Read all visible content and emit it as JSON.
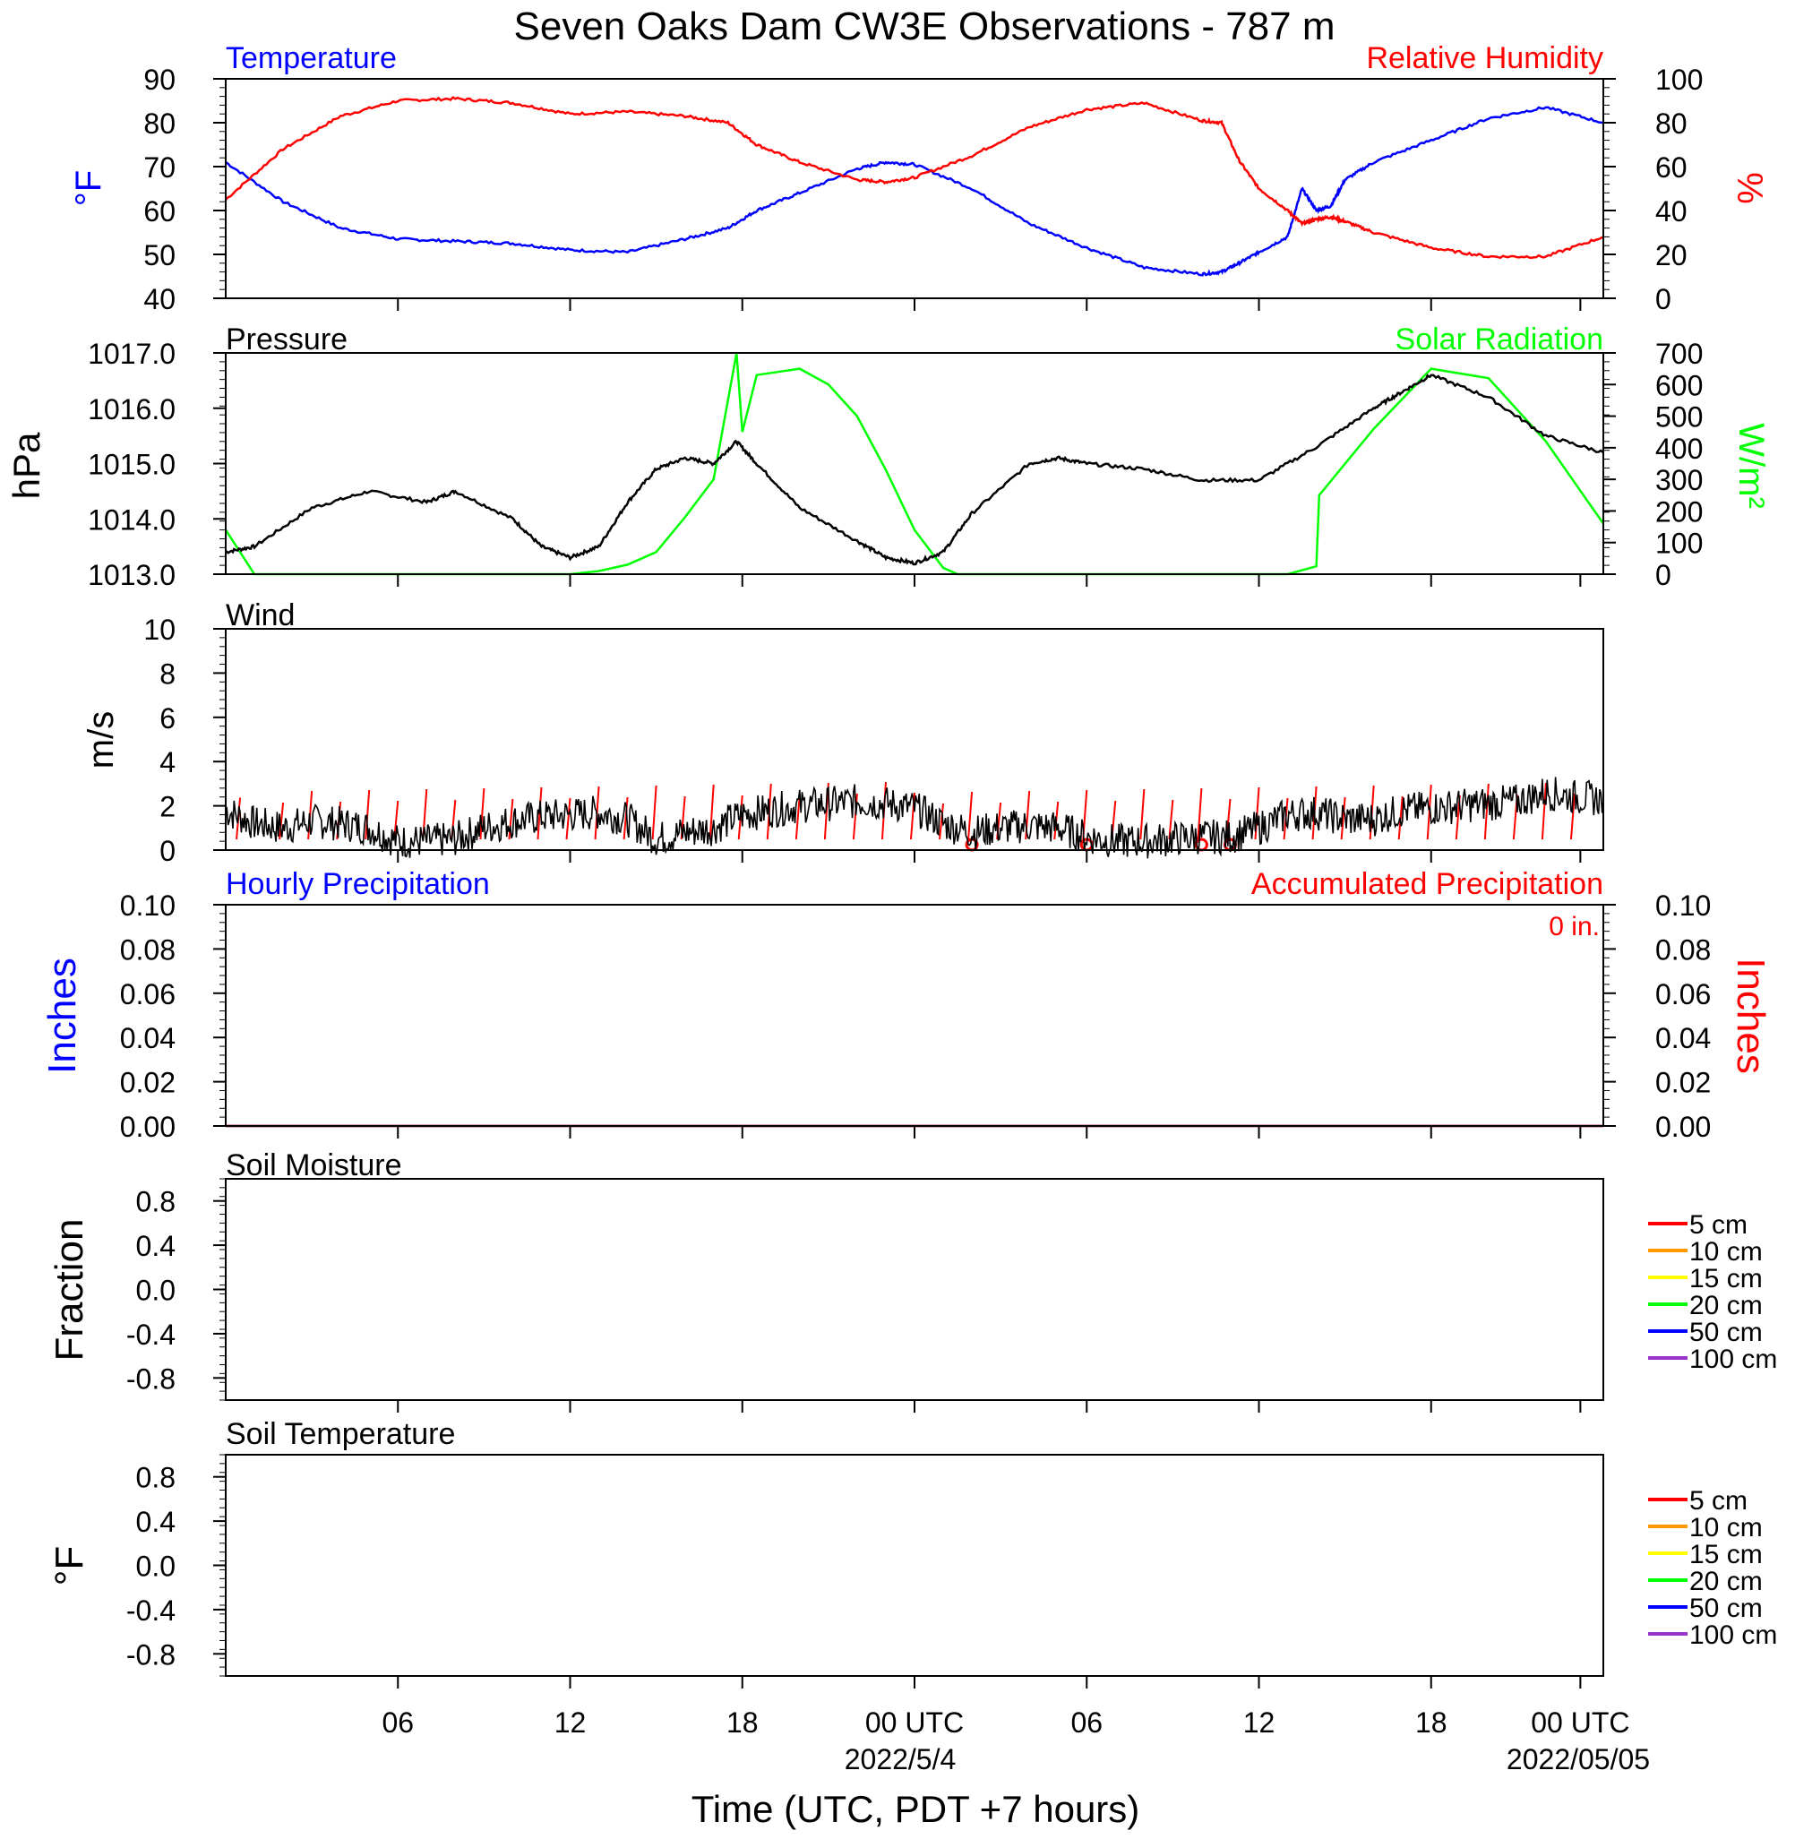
{
  "title": "Seven Oaks Dam CW3E Observations - 787 m",
  "xlabel": "Time (UTC, PDT +7 hours)",
  "x_ticks": [
    "06",
    "12",
    "18",
    "00 UTC",
    "06",
    "12",
    "18",
    "00 UTC"
  ],
  "x_dates": [
    "2022/5/4",
    "2022/05/05"
  ],
  "colors": {
    "blue": "#0000ff",
    "red": "#ff0000",
    "green": "#00ff00",
    "black": "#000000",
    "orange": "#ff9900",
    "yellow": "#ffff00",
    "purple": "#9933cc"
  },
  "chart_data": [
    {
      "type": "line",
      "panel": "temperature_humidity",
      "left_title": "Temperature",
      "right_title": "Relative Humidity",
      "left_unit": "°F",
      "right_unit": "%",
      "left_ticks": [
        "90",
        "80",
        "70",
        "60",
        "50",
        "40"
      ],
      "right_ticks": [
        "100",
        "80",
        "60",
        "40",
        "20",
        "0"
      ],
      "left_ylim": [
        40,
        90
      ],
      "right_ylim": [
        0,
        100
      ],
      "x_hours": [
        0,
        2,
        4,
        6,
        8,
        10,
        12,
        14,
        16,
        17.5,
        18.5,
        20,
        22,
        23,
        24,
        26,
        28,
        30,
        32,
        34,
        34.7,
        35.3,
        36,
        37,
        37.5,
        38,
        38.5,
        39,
        40,
        42,
        44,
        46,
        48
      ],
      "series": [
        {
          "name": "Temperature",
          "axis": "left",
          "color": "#0000ff",
          "values": [
            71,
            62,
            56,
            53.5,
            53,
            52.5,
            51,
            50.5,
            53.5,
            56,
            60,
            64,
            69.5,
            71,
            70.5,
            65,
            57,
            51.5,
            47,
            45.5,
            46,
            48,
            50.5,
            54,
            65,
            60,
            61,
            67,
            71,
            76,
            81,
            83.5,
            80
          ]
        },
        {
          "name": "Relative Humidity",
          "axis": "right",
          "color": "#ff0000",
          "values": [
            45,
            68,
            83,
            90,
            91,
            89,
            84,
            85,
            83,
            80,
            70,
            62,
            54,
            53,
            55,
            65,
            78,
            86,
            89,
            81,
            80,
            63,
            50,
            40,
            34,
            36,
            37,
            35,
            30,
            23,
            19,
            19,
            28
          ]
        }
      ]
    },
    {
      "type": "line",
      "panel": "pressure_solar",
      "left_title": "Pressure",
      "right_title": "Solar Radiation",
      "left_unit": "hPa",
      "right_unit": "W/m²",
      "left_ticks": [
        "1017.0",
        "1016.0",
        "1015.0",
        "1014.0",
        "1013.0"
      ],
      "right_ticks": [
        "700",
        "600",
        "500",
        "400",
        "300",
        "200",
        "100",
        "0"
      ],
      "left_ylim": [
        1013.0,
        1017.0
      ],
      "right_ylim": [
        0,
        700
      ],
      "series": [
        {
          "name": "Pressure",
          "axis": "left",
          "color": "#000000",
          "x_hours": [
            0,
            1,
            3,
            5,
            7,
            8,
            10,
            11,
            12,
            13,
            14,
            15,
            16,
            17,
            17.8,
            18.5,
            20,
            22,
            23,
            24,
            25,
            26,
            28,
            29,
            30,
            32,
            34,
            36,
            38,
            40,
            41,
            42,
            44,
            46,
            48
          ],
          "values": [
            1013.4,
            1013.5,
            1014.2,
            1014.5,
            1014.3,
            1014.5,
            1014.0,
            1013.5,
            1013.3,
            1013.5,
            1014.3,
            1014.9,
            1015.1,
            1015.0,
            1015.4,
            1015.0,
            1014.2,
            1013.6,
            1013.3,
            1013.2,
            1013.4,
            1014.1,
            1015.0,
            1015.1,
            1015.0,
            1014.9,
            1014.7,
            1014.7,
            1015.3,
            1016.0,
            1016.3,
            1016.6,
            1016.2,
            1015.5,
            1015.2
          ]
        },
        {
          "name": "Solar Radiation",
          "axis": "right",
          "color": "#00ff00",
          "x_hours": [
            0,
            1,
            12,
            13,
            14,
            15,
            16,
            16.5,
            17,
            17.5,
            17.8,
            18,
            18.5,
            20,
            21,
            22,
            23,
            24,
            25,
            25.5,
            37,
            38,
            38.1,
            40,
            42,
            44,
            46,
            48
          ],
          "values": [
            140,
            0,
            0,
            10,
            30,
            70,
            180,
            240,
            300,
            550,
            700,
            450,
            630,
            650,
            600,
            500,
            330,
            140,
            20,
            0,
            0,
            25,
            250,
            460,
            650,
            620,
            420,
            160
          ]
        }
      ]
    },
    {
      "type": "line",
      "panel": "wind",
      "left_title": "Wind",
      "left_unit": "m/s",
      "left_ticks": [
        "10",
        "8",
        "6",
        "4",
        "2",
        "0"
      ],
      "left_ylim": [
        0,
        10
      ],
      "series": [
        {
          "name": "Wind",
          "axis": "left",
          "color": "#000000",
          "x_hours": [
            0,
            1,
            2,
            3,
            4,
            5,
            6,
            7,
            8,
            9,
            10,
            11,
            12,
            13,
            14,
            15,
            16,
            17,
            18,
            19,
            20,
            21,
            22,
            23,
            24,
            25,
            26,
            27,
            28,
            29,
            30,
            31,
            32,
            33,
            34,
            35,
            36,
            37,
            38,
            39,
            40,
            41,
            42,
            43,
            44,
            45,
            46,
            47,
            48
          ],
          "values": [
            1.8,
            1.2,
            1.0,
            1.3,
            1.2,
            1.0,
            0.4,
            0.4,
            0.5,
            1.0,
            1.3,
            1.5,
            1.6,
            1.7,
            1.4,
            0.5,
            0.8,
            1.0,
            1.6,
            1.8,
            2.0,
            2.1,
            2.2,
            2.1,
            1.9,
            1.2,
            0.8,
            1.0,
            1.1,
            1.0,
            0.6,
            0.4,
            0.4,
            0.5,
            0.6,
            0.6,
            1.0,
            1.6,
            1.7,
            1.4,
            1.4,
            1.8,
            1.9,
            2.0,
            2.1,
            2.2,
            2.6,
            2.4,
            2.3
          ]
        }
      ],
      "barb_hours": [
        0.5,
        2,
        3,
        4,
        5,
        6,
        7,
        8,
        9,
        10,
        11,
        12,
        13,
        14,
        15,
        16,
        17,
        18,
        19,
        20,
        21,
        22,
        23,
        24,
        25,
        26,
        27,
        28,
        29,
        30,
        31,
        32,
        33,
        34,
        35,
        36,
        37,
        38,
        39,
        40,
        41,
        42,
        43,
        44,
        45,
        46,
        47
      ],
      "calm_hours": [
        26,
        30,
        34,
        35
      ]
    },
    {
      "type": "line",
      "panel": "precipitation",
      "left_title": "Hourly Precipitation",
      "right_title": "Accumulated Precipitation",
      "accumulated_total": "0 in.",
      "left_unit": "Inches",
      "right_unit": "Inches",
      "left_ticks": [
        "0.10",
        "0.08",
        "0.06",
        "0.04",
        "0.02",
        "0.00"
      ],
      "right_ticks": [
        "0.10",
        "0.08",
        "0.06",
        "0.04",
        "0.02",
        "0.00"
      ],
      "left_ylim": [
        0,
        0.1
      ],
      "series": [
        {
          "name": "Hourly Precipitation",
          "color": "#0000ff",
          "x_hours": [
            0,
            48
          ],
          "values": [
            0,
            0
          ]
        },
        {
          "name": "Accumulated Precipitation",
          "color": "#ff0000",
          "x_hours": [
            0,
            48
          ],
          "values": [
            0,
            0
          ]
        }
      ]
    },
    {
      "type": "line",
      "panel": "soil_moisture",
      "left_title": "Soil Moisture",
      "left_unit": "Fraction",
      "left_ticks": [
        "0.8",
        "0.4",
        "0.0",
        "-0.4",
        "-0.8"
      ],
      "left_ylim": [
        -1,
        1
      ],
      "legend": [
        {
          "label": "5 cm",
          "color": "#ff0000"
        },
        {
          "label": "10 cm",
          "color": "#ff9900"
        },
        {
          "label": "15 cm",
          "color": "#ffff00"
        },
        {
          "label": "20 cm",
          "color": "#00ff00"
        },
        {
          "label": "50 cm",
          "color": "#0000ff"
        },
        {
          "label": "100 cm",
          "color": "#9933cc"
        }
      ]
    },
    {
      "type": "line",
      "panel": "soil_temperature",
      "left_title": "Soil Temperature",
      "left_unit": "°F",
      "left_ticks": [
        "0.8",
        "0.4",
        "0.0",
        "-0.4",
        "-0.8"
      ],
      "left_ylim": [
        -1,
        1
      ],
      "legend": [
        {
          "label": "5 cm",
          "color": "#ff0000"
        },
        {
          "label": "10 cm",
          "color": "#ff9900"
        },
        {
          "label": "15 cm",
          "color": "#ffff00"
        },
        {
          "label": "20 cm",
          "color": "#00ff00"
        },
        {
          "label": "50 cm",
          "color": "#0000ff"
        },
        {
          "label": "100 cm",
          "color": "#9933cc"
        }
      ]
    }
  ]
}
